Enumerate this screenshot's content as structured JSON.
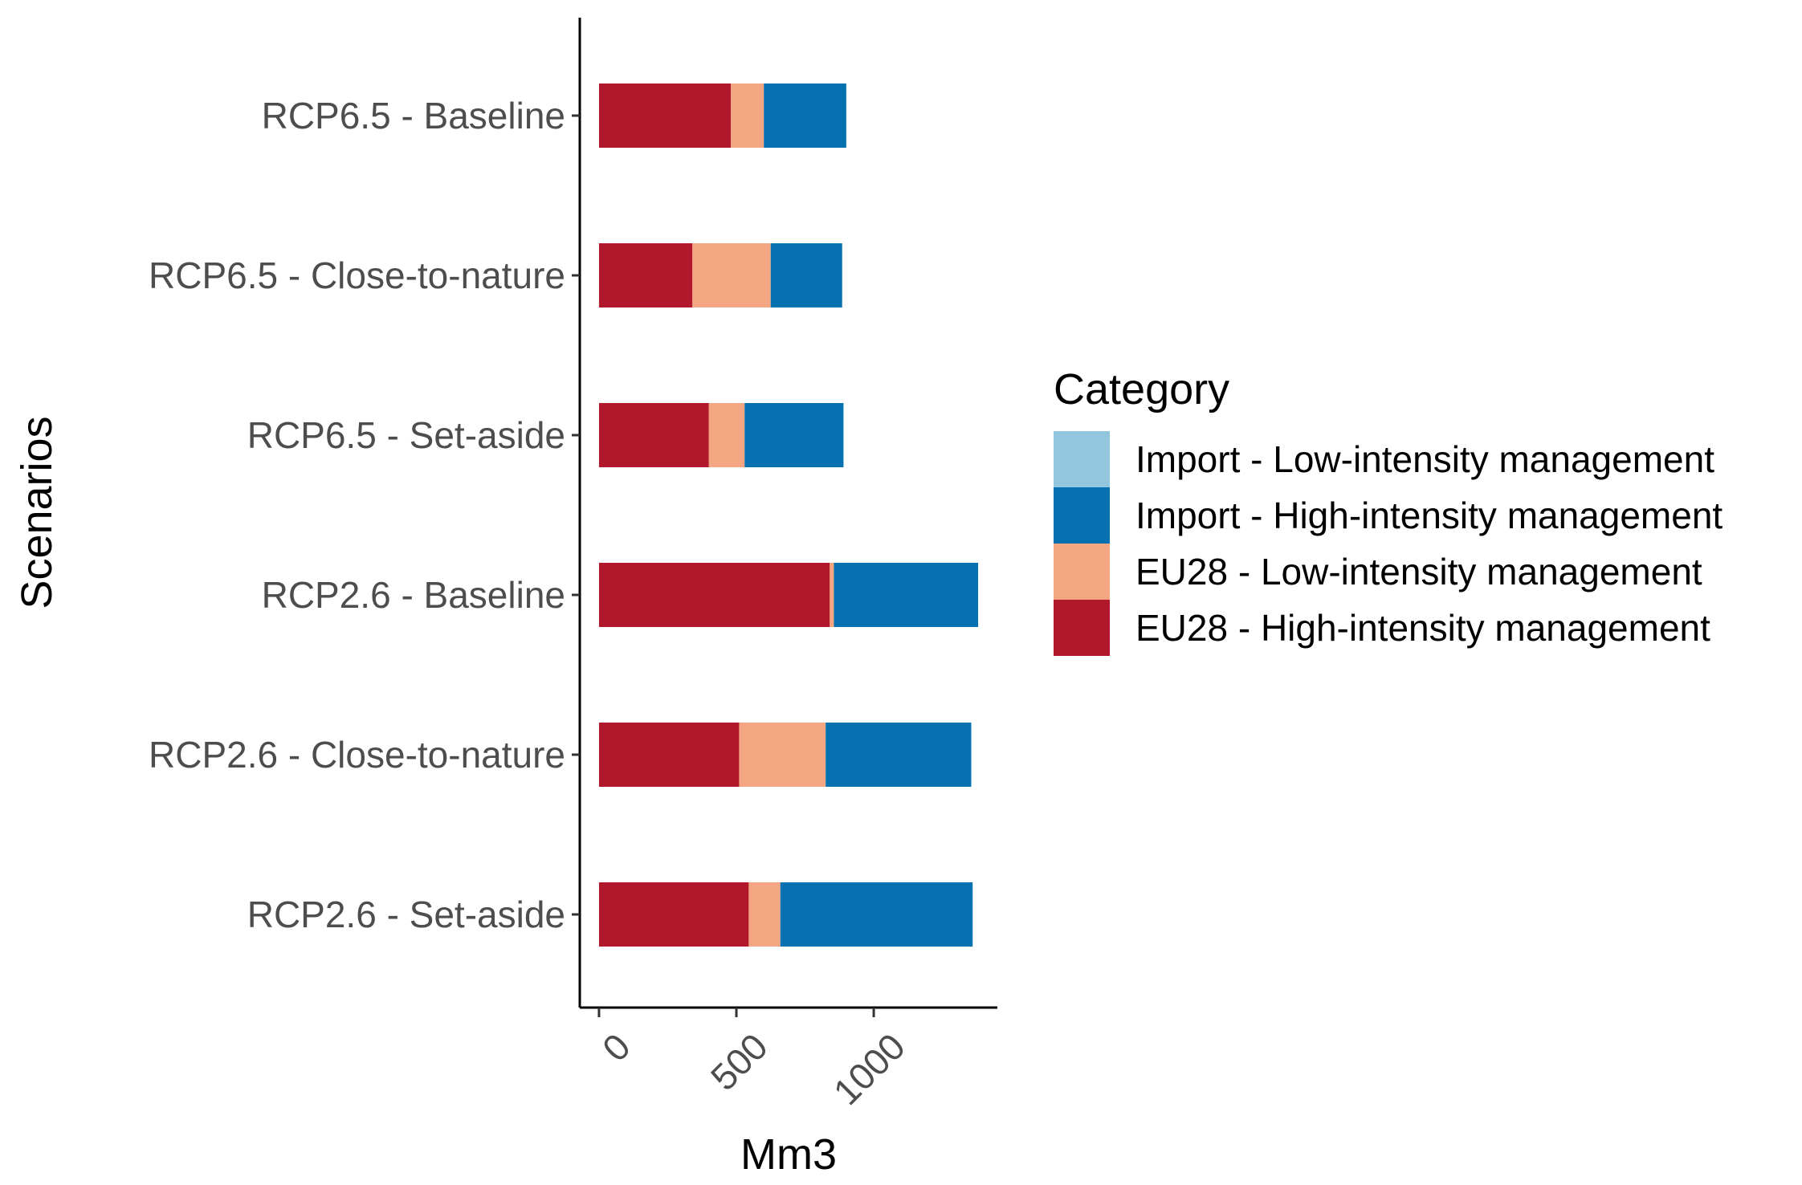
{
  "chart_data": {
    "type": "bar",
    "orientation": "horizontal",
    "stacked": true,
    "categories": [
      "RCP6.5 - Baseline",
      "RCP6.5 - Close-to-nature",
      "RCP6.5 - Set-aside",
      "RCP2.6 - Baseline",
      "RCP2.6 - Close-to-nature",
      "RCP2.6 - Set-aside"
    ],
    "series": [
      {
        "name": "EU28 - High-intensity management",
        "color": "#b2182b",
        "values": [
          480,
          340,
          400,
          840,
          510,
          545
        ]
      },
      {
        "name": "EU28 - Low-intensity management",
        "color": "#f4a582",
        "values": [
          120,
          285,
          130,
          15,
          315,
          115
        ]
      },
      {
        "name": "Import - High-intensity management",
        "color": "#0571b0",
        "values": [
          300,
          260,
          360,
          525,
          530,
          700
        ]
      },
      {
        "name": "Import - Low-intensity management",
        "color": "#92c5de",
        "values": [
          0,
          0,
          0,
          0,
          0,
          0
        ]
      }
    ],
    "xlabel": "Mm3",
    "ylabel": "Scenarios",
    "xlim": [
      -70,
      1450
    ],
    "xticks": [
      0,
      500,
      1000
    ],
    "legend": {
      "title": "Category",
      "position": "right",
      "entries": [
        {
          "label": "Import - Low-intensity management",
          "color": "#92c5de"
        },
        {
          "label": "Import - High-intensity management",
          "color": "#0571b0"
        },
        {
          "label": "EU28 - Low-intensity management",
          "color": "#f4a582"
        },
        {
          "label": "EU28 - High-intensity management",
          "color": "#b2182b"
        }
      ]
    },
    "grid": false
  }
}
